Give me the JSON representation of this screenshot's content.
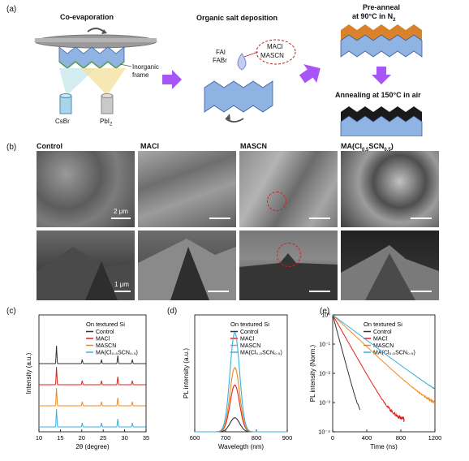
{
  "panel_a": {
    "label": "(a)",
    "step1_title": "Co-evaporation",
    "inorganic_frame": "Inorganic frame",
    "source1": "CsBr",
    "source2_main": "PbI",
    "source2_sub": "2",
    "step2_title": "Organic salt deposition",
    "salt1": "FAI",
    "salt2": "FABr",
    "additive1": "MACl",
    "additive2": "MASCN",
    "step3_line1": "Pre-anneal",
    "step3_line2": "at 90°C in N",
    "step3_sub": "2",
    "step4_title": "Annealing at 150°C in air"
  },
  "panel_b": {
    "label": "(b)",
    "col1": "Control",
    "col2": "MACl",
    "col3": "MASCN",
    "col4_main": "MA(Cl",
    "col4_sub1": "0.5",
    "col4_mid": "SCN",
    "col4_sub2": "0.5",
    "col4_end": ")",
    "scale_top": "2 μm",
    "scale_bottom": "1 μm"
  },
  "panel_c": {
    "label": "(c)"
  },
  "panel_d": {
    "label": "(d)"
  },
  "panel_e": {
    "label": "(e)"
  },
  "colors": {
    "control": "#333333",
    "macl": "#e02020",
    "mascn": "#f08a20",
    "ma": "#3ab0e0",
    "arrow": "#a855f7",
    "film": "#8fb3e3",
    "film_dark": "#3d5d9e",
    "orange_cap": "#d9822b"
  },
  "chart_data": [
    {
      "type": "line",
      "panel": "c",
      "title": "On textured Si",
      "xlabel": "2θ (degree)",
      "ylabel": "Intensity (a.u.)",
      "xlim": [
        10,
        35
      ],
      "xticks": [
        10,
        15,
        20,
        25,
        30,
        35
      ],
      "series": [
        {
          "name": "Control",
          "color": "#333333",
          "peaks": [
            14.1,
            20.1,
            24.6,
            28.4,
            31.8
          ]
        },
        {
          "name": "MACl",
          "color": "#e02020",
          "peaks": [
            14.1,
            20.1,
            24.6,
            28.4,
            31.8
          ]
        },
        {
          "name": "MASCN",
          "color": "#f08a20",
          "peaks": [
            14.1,
            20.1,
            24.6,
            28.4,
            31.8
          ]
        },
        {
          "name": "MA(Cl0.5SCN0.5)",
          "color": "#3ab0e0",
          "peaks": [
            14.1,
            20.1,
            24.6,
            28.4,
            31.8
          ]
        }
      ]
    },
    {
      "type": "line",
      "panel": "d",
      "title": "On textured Si",
      "xlabel": "Wavelegth (nm)",
      "ylabel": "PL intensity (a.u.)",
      "xlim": [
        600,
        900
      ],
      "xticks": [
        600,
        700,
        800,
        900
      ],
      "peak_nm": 730,
      "series": [
        {
          "name": "Control",
          "color": "#333333",
          "peak": 0.12
        },
        {
          "name": "MACl",
          "color": "#e02020",
          "peak": 0.4
        },
        {
          "name": "MASCN",
          "color": "#f08a20",
          "peak": 0.55
        },
        {
          "name": "MA(Cl0.5SCN0.5)",
          "color": "#3ab0e0",
          "peak": 0.85
        }
      ]
    },
    {
      "type": "line",
      "panel": "e",
      "title": "On textured Si",
      "xlabel": "Time (ns)",
      "ylabel": "PL intensity (Norm.)",
      "xlim": [
        0,
        1200
      ],
      "xticks": [
        0,
        400,
        800,
        1200
      ],
      "yscale": "log",
      "ylim": [
        0.0001,
        1
      ],
      "yticks": [
        "10⁻⁴",
        "10⁻³",
        "10⁻²",
        "10⁻¹",
        "10⁰"
      ],
      "series": [
        {
          "name": "Control",
          "color": "#333333",
          "tau": 40,
          "floor": 0.00022,
          "tmax": 320
        },
        {
          "name": "MACl",
          "color": "#e02020",
          "tau": 85,
          "floor": 0.00022,
          "tmax": 840
        },
        {
          "name": "MASCN",
          "color": "#f08a20",
          "tau": 160,
          "floor": 0.00045,
          "tmax": 1200
        },
        {
          "name": "MA(Cl0.5SCN0.5)",
          "color": "#3ab0e0",
          "tau": 200,
          "floor": 0.00045,
          "tmax": 1200
        }
      ]
    }
  ]
}
